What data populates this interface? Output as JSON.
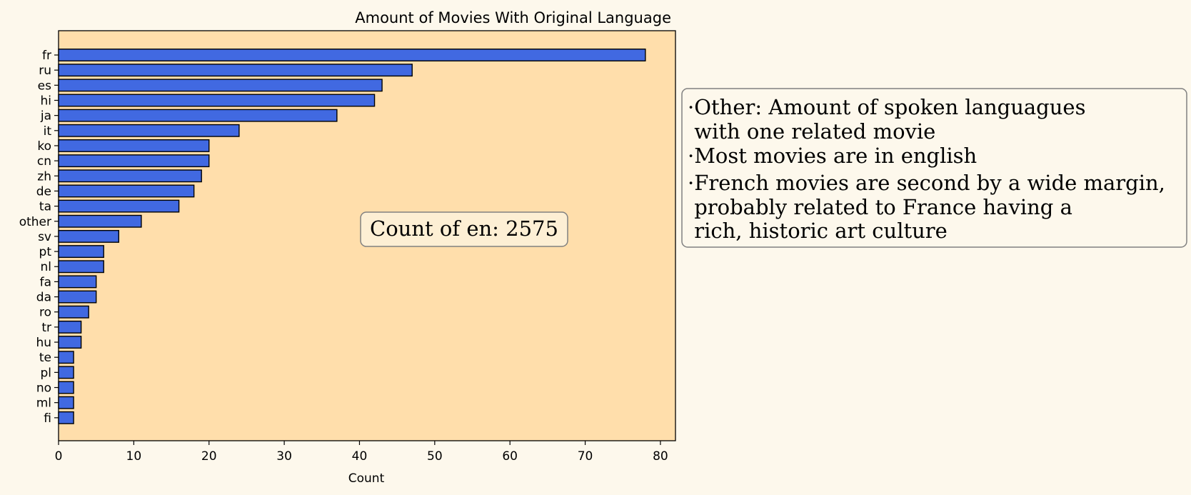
{
  "chart_data": {
    "type": "bar",
    "orientation": "horizontal",
    "title": "Amount of Movies With Original Language",
    "xlabel": "Count",
    "ylabel": "",
    "categories": [
      "fr",
      "ru",
      "es",
      "hi",
      "ja",
      "it",
      "ko",
      "cn",
      "zh",
      "de",
      "ta",
      "other",
      "sv",
      "pt",
      "nl",
      "fa",
      "da",
      "ro",
      "tr",
      "hu",
      "te",
      "pl",
      "no",
      "ml",
      "fi"
    ],
    "values": [
      78,
      47,
      43,
      42,
      37,
      24,
      20,
      20,
      19,
      18,
      16,
      11,
      8,
      6,
      6,
      5,
      5,
      4,
      3,
      3,
      2,
      2,
      2,
      2,
      2
    ],
    "xlim": [
      0,
      82
    ],
    "xticks": [
      0,
      10,
      20,
      30,
      40,
      50,
      60,
      70,
      80
    ],
    "grid": false,
    "colors": {
      "bar": "#4169e1",
      "bar_edge": "#000000",
      "plot_background": "#ffdeab",
      "figure_background": "#fdf8ec",
      "annotation_box": "#fdefd4",
      "note_box": "#fdf8ec",
      "box_edge": "#808080"
    },
    "annotation": "Count of en: 2575",
    "notes": [
      "·Other: Amount of spoken languagues",
      " with one related movie",
      "·Most movies are in english",
      "·French movies are second by a wide margin,",
      " probably related to France having a",
      " rich, historic art culture"
    ]
  }
}
